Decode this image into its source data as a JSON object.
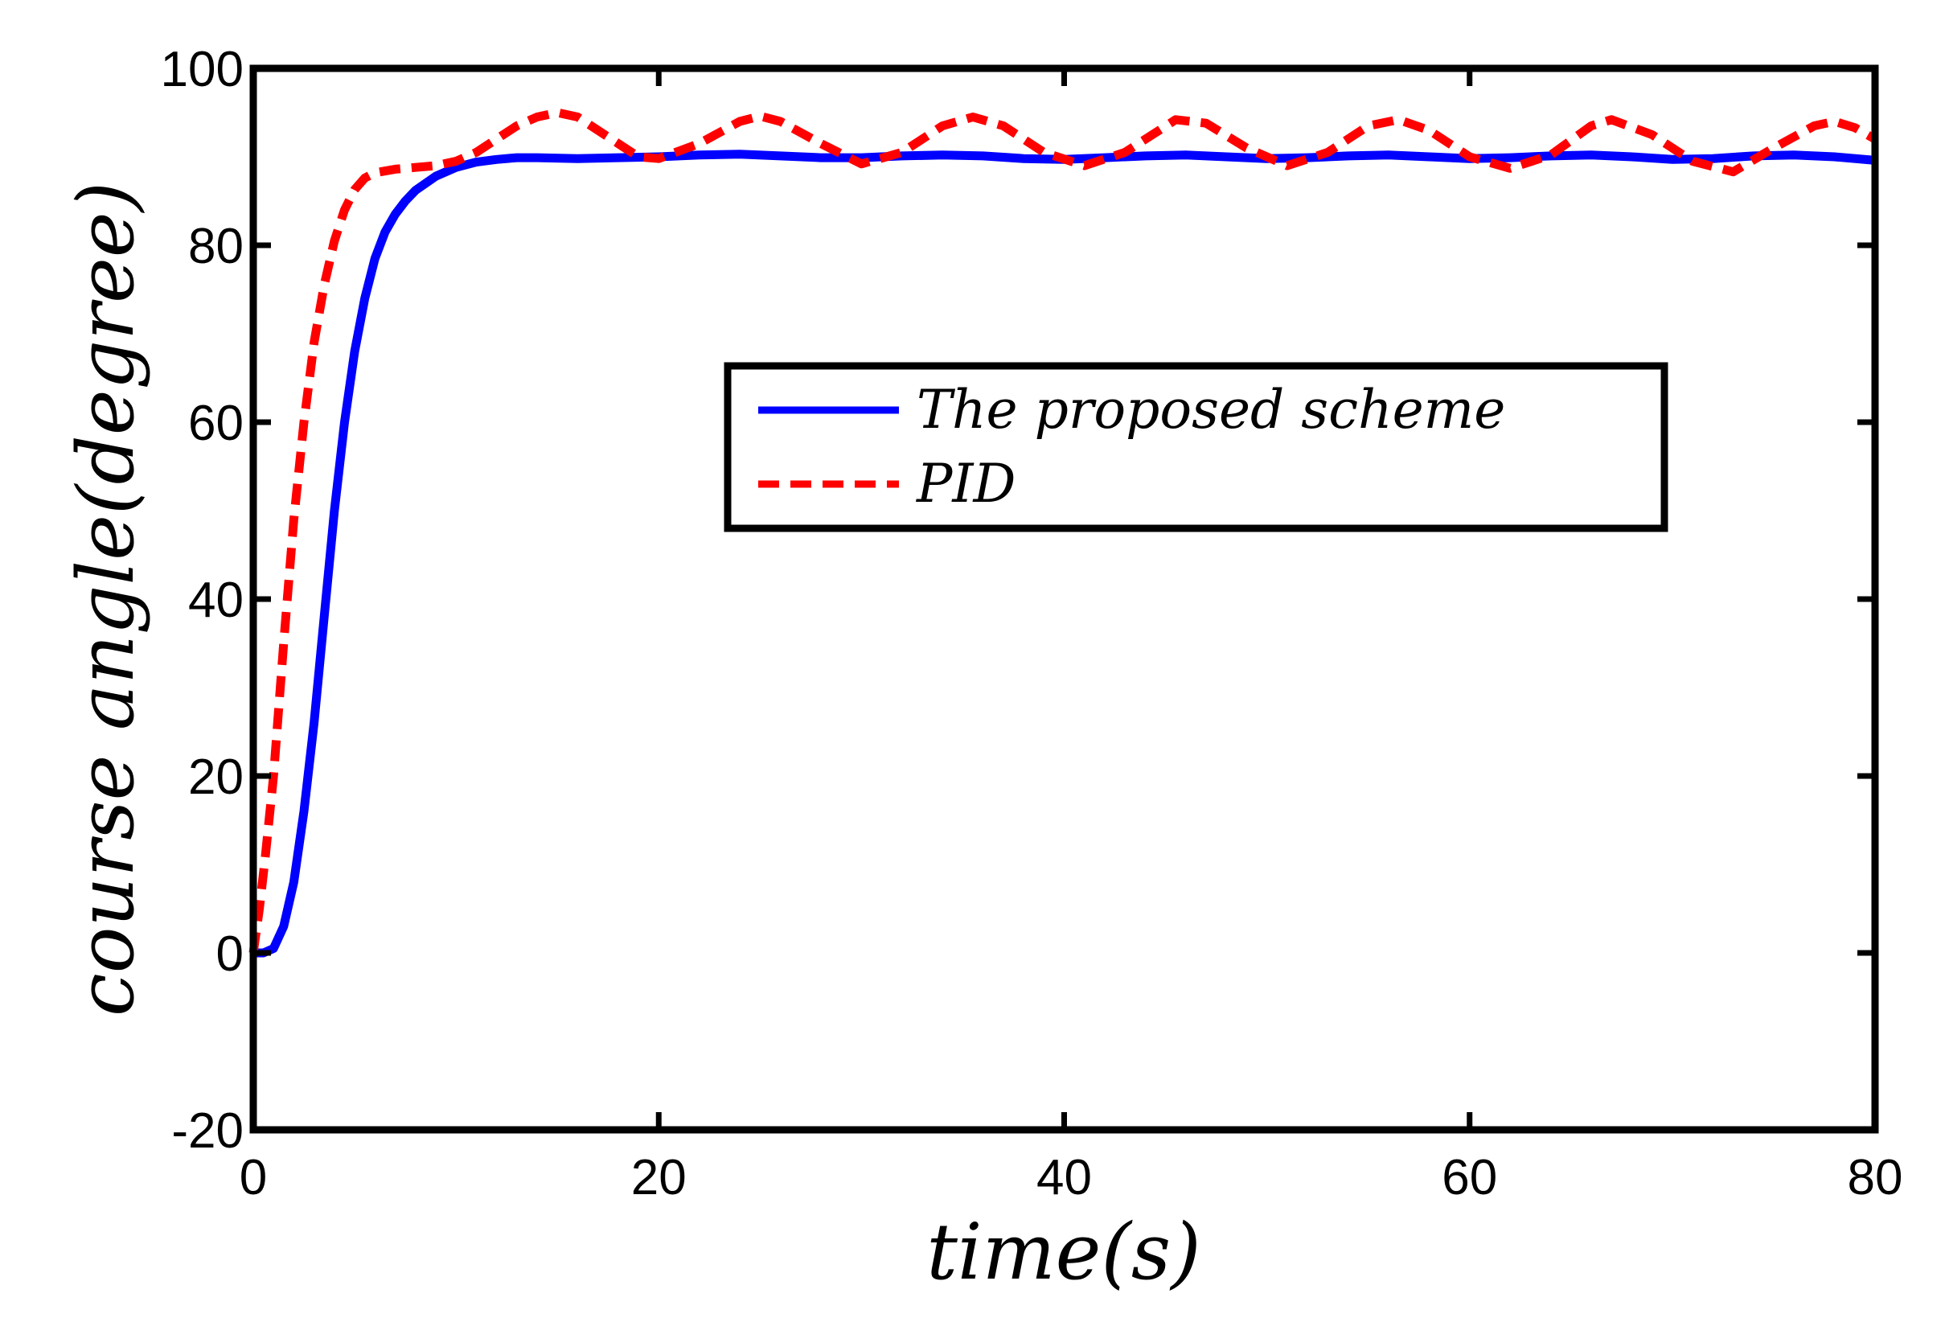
{
  "chart_data": {
    "type": "line",
    "title": "",
    "xlabel": "time(s)",
    "ylabel": "course angle(degree)",
    "xlim": [
      0,
      80
    ],
    "ylim": [
      -20,
      100
    ],
    "xticks": [
      0,
      20,
      40,
      60,
      80
    ],
    "yticks": [
      -20,
      0,
      20,
      40,
      60,
      80,
      100
    ],
    "xtick_labels": [
      "0",
      "20",
      "40",
      "60",
      "80"
    ],
    "ytick_labels": [
      "-20",
      "0",
      "20",
      "40",
      "60",
      "80",
      "100"
    ],
    "grid": false,
    "legend_position": "center-right",
    "series": [
      {
        "name": "The proposed scheme",
        "color": "#0000ff",
        "style": "solid",
        "x": [
          0,
          0.5,
          1,
          1.5,
          2,
          2.5,
          3,
          3.5,
          4,
          4.5,
          5,
          5.5,
          6,
          6.5,
          7,
          7.5,
          8,
          9,
          10,
          11,
          12,
          13,
          14,
          16,
          18,
          20,
          22,
          24,
          26,
          28,
          30,
          32,
          34,
          36,
          38,
          40,
          42,
          44,
          46,
          48,
          50,
          52,
          54,
          56,
          58,
          60,
          62,
          64,
          66,
          68,
          70,
          72,
          74,
          76,
          78,
          80
        ],
        "y": [
          0,
          0,
          0.5,
          3,
          8,
          16,
          26,
          38,
          50,
          60,
          68,
          74,
          78.5,
          81.5,
          83.5,
          85,
          86.2,
          87.8,
          88.8,
          89.4,
          89.7,
          89.9,
          89.9,
          89.8,
          89.9,
          90.0,
          90.2,
          90.3,
          90.1,
          89.9,
          89.9,
          90.1,
          90.2,
          90.1,
          89.8,
          89.7,
          89.9,
          90.1,
          90.2,
          90.0,
          89.8,
          89.9,
          90.1,
          90.2,
          90.0,
          89.8,
          89.9,
          90.1,
          90.2,
          90.0,
          89.7,
          89.8,
          90.1,
          90.2,
          90.0,
          89.6
        ]
      },
      {
        "name": "PID",
        "color": "#ff0000",
        "style": "dashed",
        "x": [
          0,
          0.3,
          0.6,
          1,
          1.5,
          2,
          2.5,
          3,
          3.5,
          4,
          4.5,
          5,
          5.5,
          6,
          7,
          8,
          9,
          10,
          11,
          12,
          13,
          14,
          15,
          16,
          17,
          18,
          19,
          20,
          22,
          24,
          25,
          26,
          28,
          30,
          32,
          34,
          35.5,
          37,
          39,
          41,
          43,
          45.5,
          47,
          49,
          51,
          53,
          55,
          56.5,
          58,
          60,
          62,
          64,
          66,
          67,
          69,
          71,
          73,
          75,
          77,
          78,
          79,
          80
        ],
        "y": [
          0,
          5,
          11,
          20,
          35,
          49,
          60,
          69,
          75.5,
          80.5,
          84,
          86.3,
          87.6,
          88.2,
          88.6,
          88.8,
          89,
          89.5,
          90.5,
          92,
          93.5,
          94.5,
          95,
          94.5,
          93,
          91.5,
          90,
          89.8,
          91.5,
          94,
          94.6,
          94,
          91.5,
          89.2,
          90.5,
          93.5,
          94.5,
          93.5,
          90.5,
          89,
          90.5,
          94.2,
          93.8,
          91,
          89,
          90.5,
          93.5,
          94.2,
          93,
          90,
          88.7,
          90.2,
          93.5,
          94.2,
          92.5,
          89.5,
          88.3,
          91,
          93.5,
          94,
          93.3,
          92
        ]
      }
    ]
  }
}
